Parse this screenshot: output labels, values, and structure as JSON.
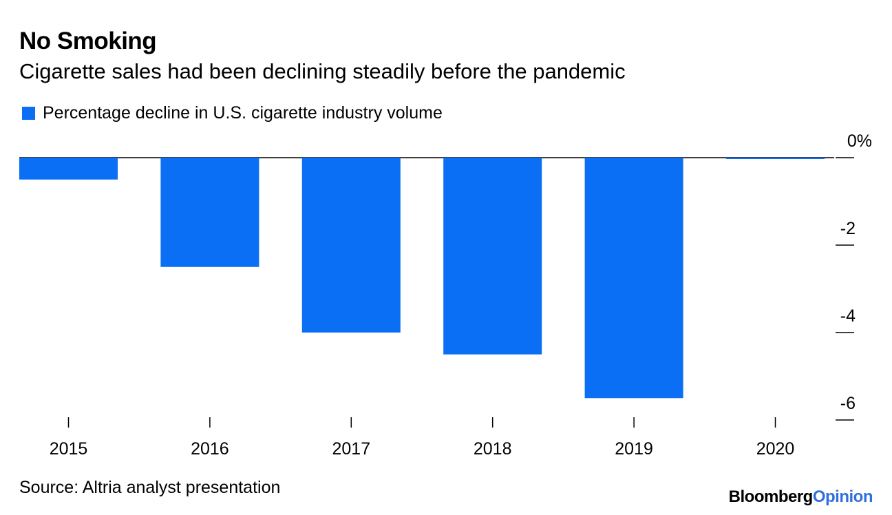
{
  "title": "No Smoking",
  "subtitle": "Cigarette sales had been declining steadily before the pandemic",
  "source": "Source: Altria analyst presentation",
  "brand": {
    "name": "Bloomberg",
    "suffix": "Opinion",
    "suffix_color": "#2f6fde"
  },
  "chart_data": {
    "type": "bar",
    "categories": [
      "2015",
      "2016",
      "2017",
      "2018",
      "2019",
      "2020"
    ],
    "series": [
      {
        "name": "Percentage decline in U.S. cigarette industry volume",
        "values": [
          -0.5,
          -2.5,
          -4.0,
          -4.5,
          -5.5,
          0.0
        ],
        "color": "#0a6ff5"
      }
    ],
    "ylim": [
      -6,
      0
    ],
    "yticks": [
      0,
      -2,
      -4,
      -6
    ],
    "ytick_labels": [
      "0%",
      "-2",
      "-4",
      "-6"
    ],
    "legend_position": "top-left",
    "grid": false
  }
}
